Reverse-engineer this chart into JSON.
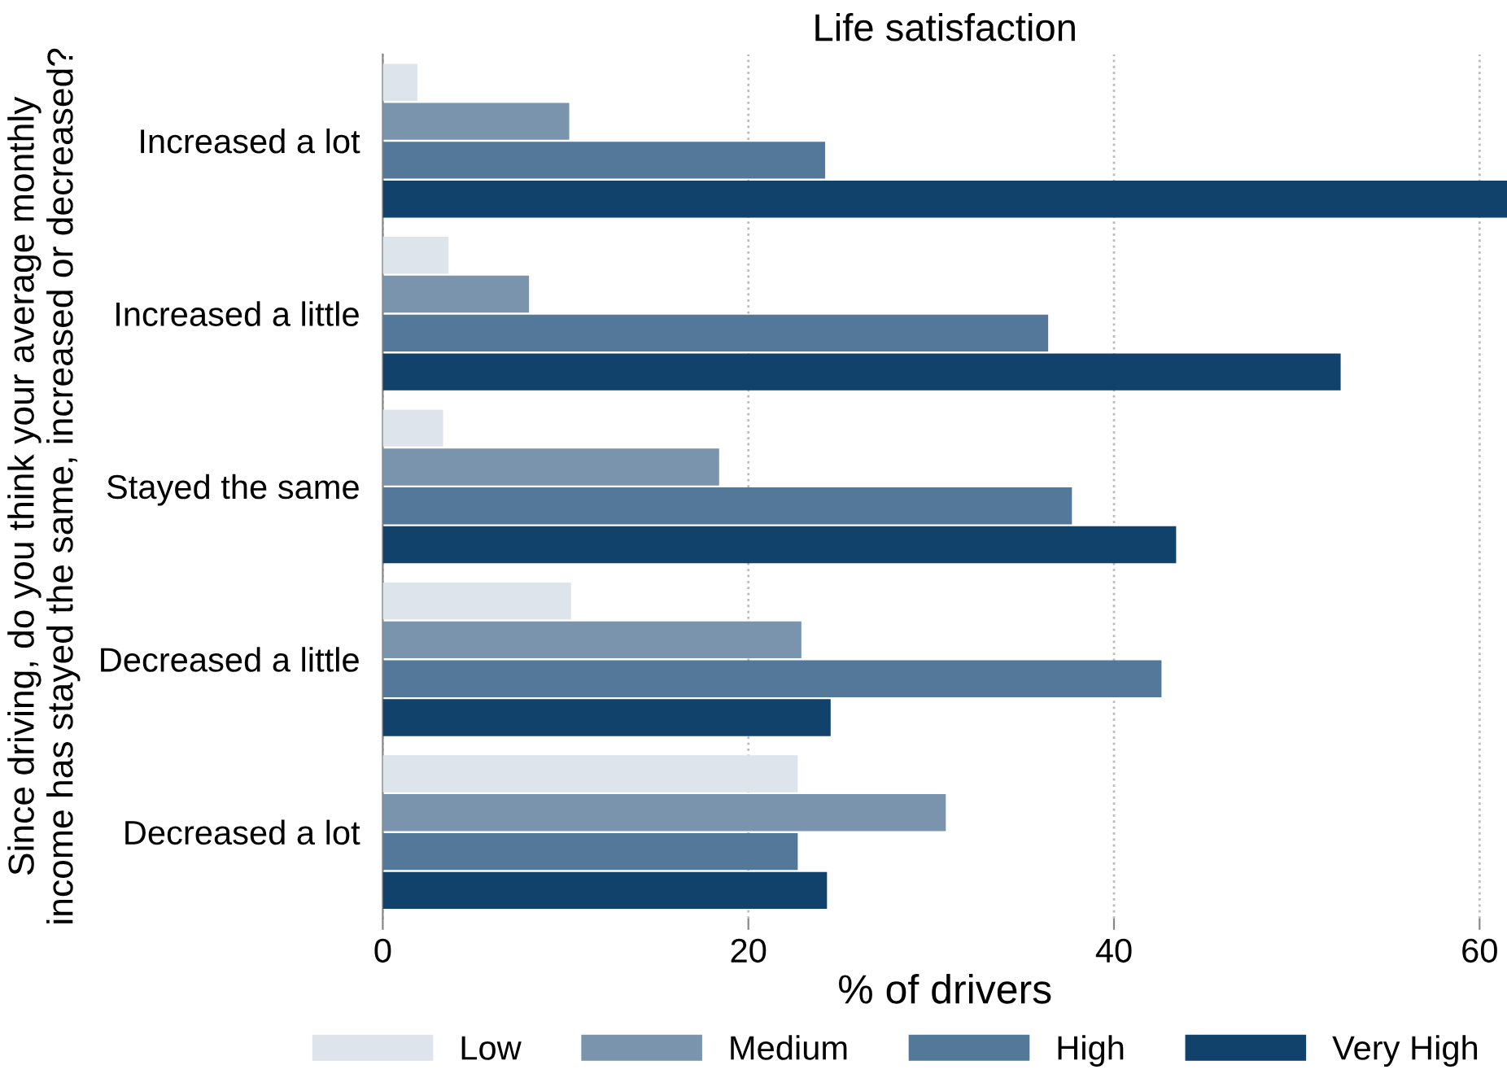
{
  "chart_data": {
    "type": "bar",
    "orientation": "horizontal",
    "title": "Life satisfaction",
    "xlabel": "% of drivers",
    "ylabel": "Since driving, do you think your average monthly\nincome has stayed the same, increased or decreased?",
    "categories": [
      "Increased a lot",
      "Increased a little",
      "Stayed the same",
      "Decreased a little",
      "Decreased a lot"
    ],
    "series": [
      {
        "name": "Low",
        "color": "#dde4ec",
        "values": [
          1.9,
          3.6,
          3.3,
          10.3,
          22.7
        ]
      },
      {
        "name": "Medium",
        "color": "#7a94ae",
        "values": [
          10.2,
          8.0,
          18.4,
          22.9,
          30.8
        ]
      },
      {
        "name": "High",
        "color": "#53789a",
        "values": [
          24.2,
          36.4,
          37.7,
          42.6,
          22.7
        ]
      },
      {
        "name": "Very High",
        "color": "#10426b",
        "values": [
          61.5,
          52.4,
          43.4,
          24.5,
          24.3
        ]
      }
    ],
    "xlim": [
      0,
      61.5
    ],
    "xticks": [
      0,
      20,
      40,
      60
    ],
    "grid": "x",
    "legend": "bottom"
  }
}
